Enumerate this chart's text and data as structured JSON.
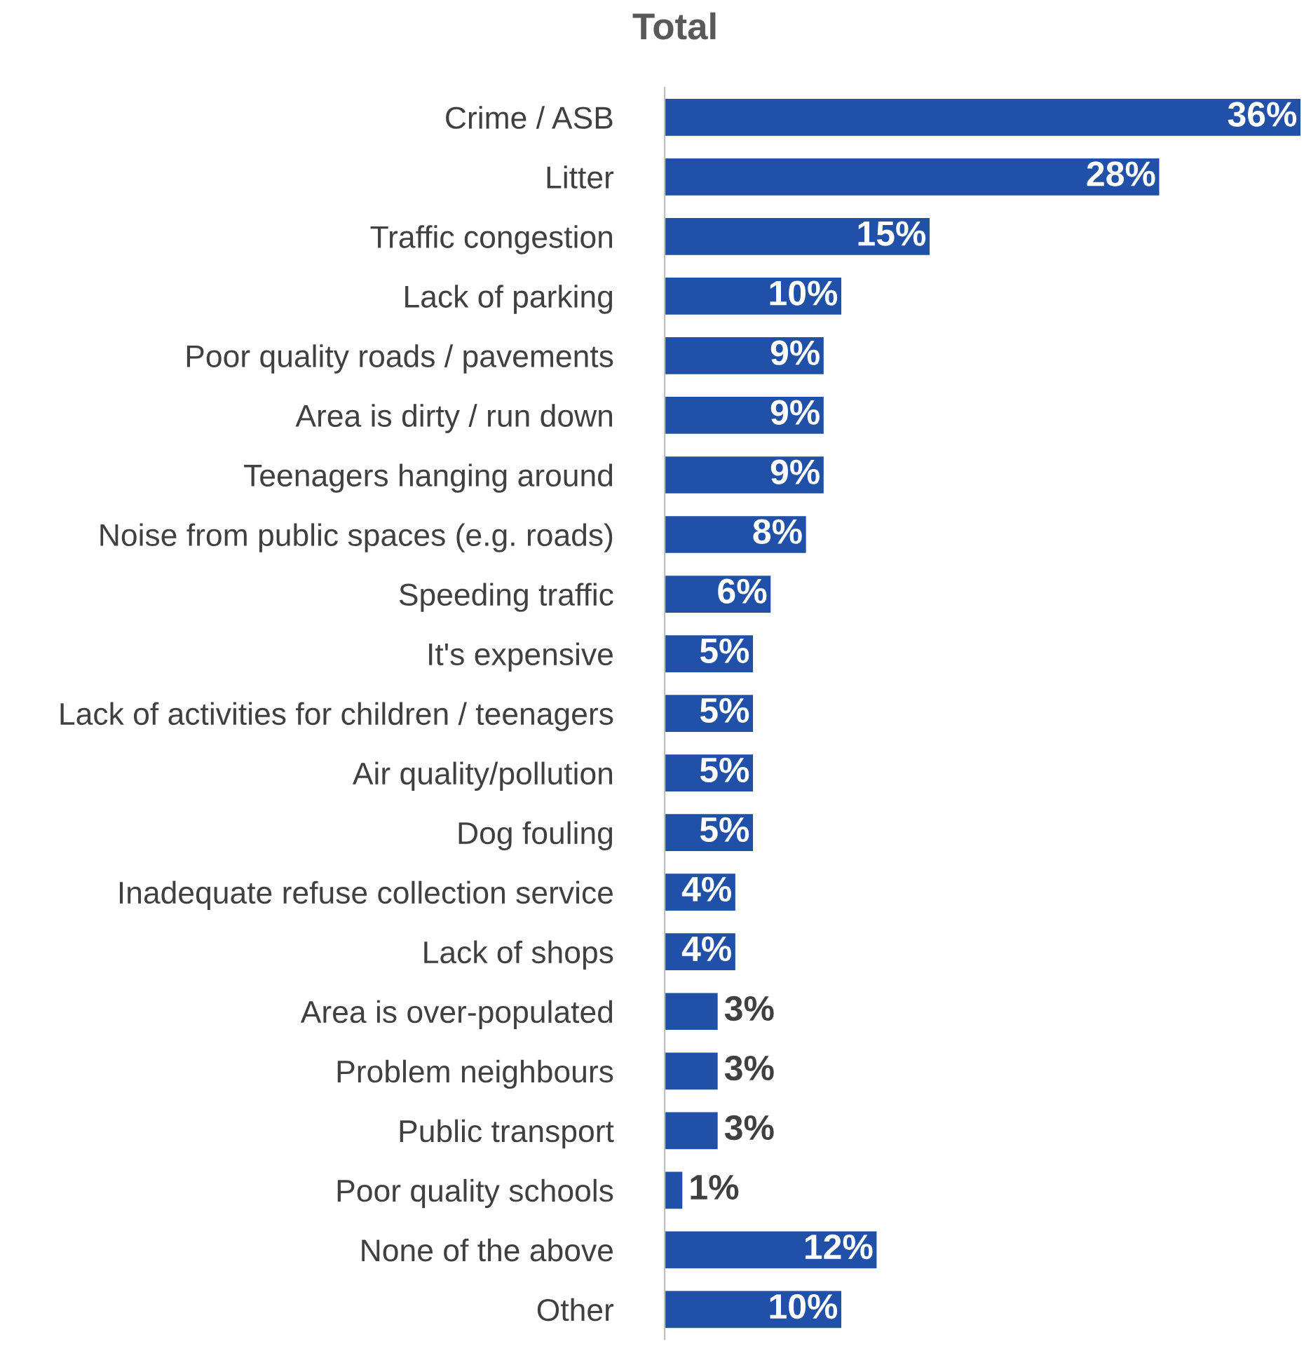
{
  "chart_data": {
    "type": "bar",
    "orientation": "horizontal",
    "title": "Total",
    "categories": [
      "Crime / ASB",
      "Litter",
      "Traffic congestion",
      "Lack of parking",
      "Poor quality roads / pavements",
      "Area is dirty / run down",
      "Teenagers hanging around",
      "Noise from public spaces (e.g. roads)",
      "Speeding traffic",
      "It's expensive",
      "Lack of activities for children / teenagers",
      "Air quality/pollution",
      "Dog fouling",
      "Inadequate refuse collection service",
      "Lack of shops",
      "Area is over-populated",
      "Problem neighbours",
      "Public transport",
      "Poor quality schools",
      "None of the above",
      "Other"
    ],
    "values": [
      36,
      28,
      15,
      10,
      9,
      9,
      9,
      8,
      6,
      5,
      5,
      5,
      5,
      4,
      4,
      3,
      3,
      3,
      1,
      12,
      10
    ],
    "value_labels": [
      "36%",
      "28%",
      "15%",
      "10%",
      "9%",
      "9%",
      "9%",
      "8%",
      "6%",
      "5%",
      "5%",
      "5%",
      "5%",
      "4%",
      "4%",
      "3%",
      "3%",
      "3%",
      "1%",
      "12%",
      "10%"
    ],
    "color": "#2150a8",
    "grid": false,
    "legend": false
  }
}
